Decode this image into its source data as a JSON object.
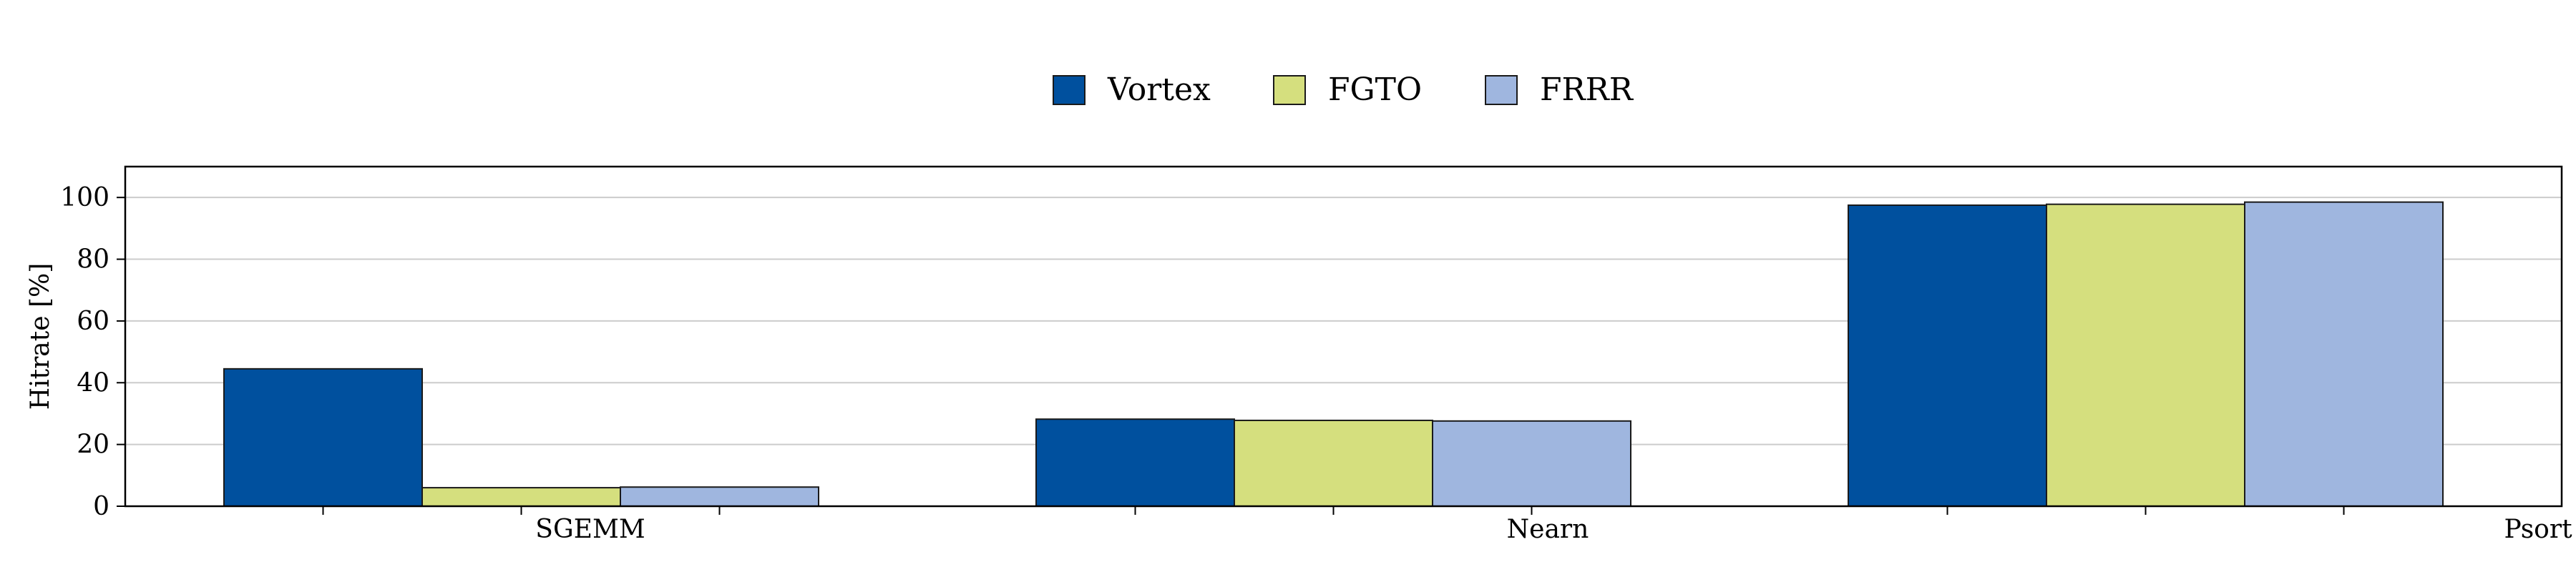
{
  "chart_data": {
    "type": "bar",
    "categories": [
      "SGEMM",
      "Nearn",
      "Psort"
    ],
    "series": [
      {
        "name": "Vortex",
        "values": [
          44.5,
          28.2,
          97.5
        ]
      },
      {
        "name": "FGTO",
        "values": [
          6.0,
          27.8,
          97.8
        ]
      },
      {
        "name": "FRRR",
        "values": [
          6.2,
          27.6,
          98.5
        ]
      }
    ],
    "xlabel": "",
    "ylabel": "Hitrate [%]",
    "ylim": [
      0,
      110
    ],
    "yticks": [
      0,
      20,
      40,
      60,
      80,
      100
    ],
    "grid": "y",
    "legend_placement": "top-center",
    "colors": [
      "#00509e",
      "#d5df7e",
      "#9fb6df"
    ]
  }
}
